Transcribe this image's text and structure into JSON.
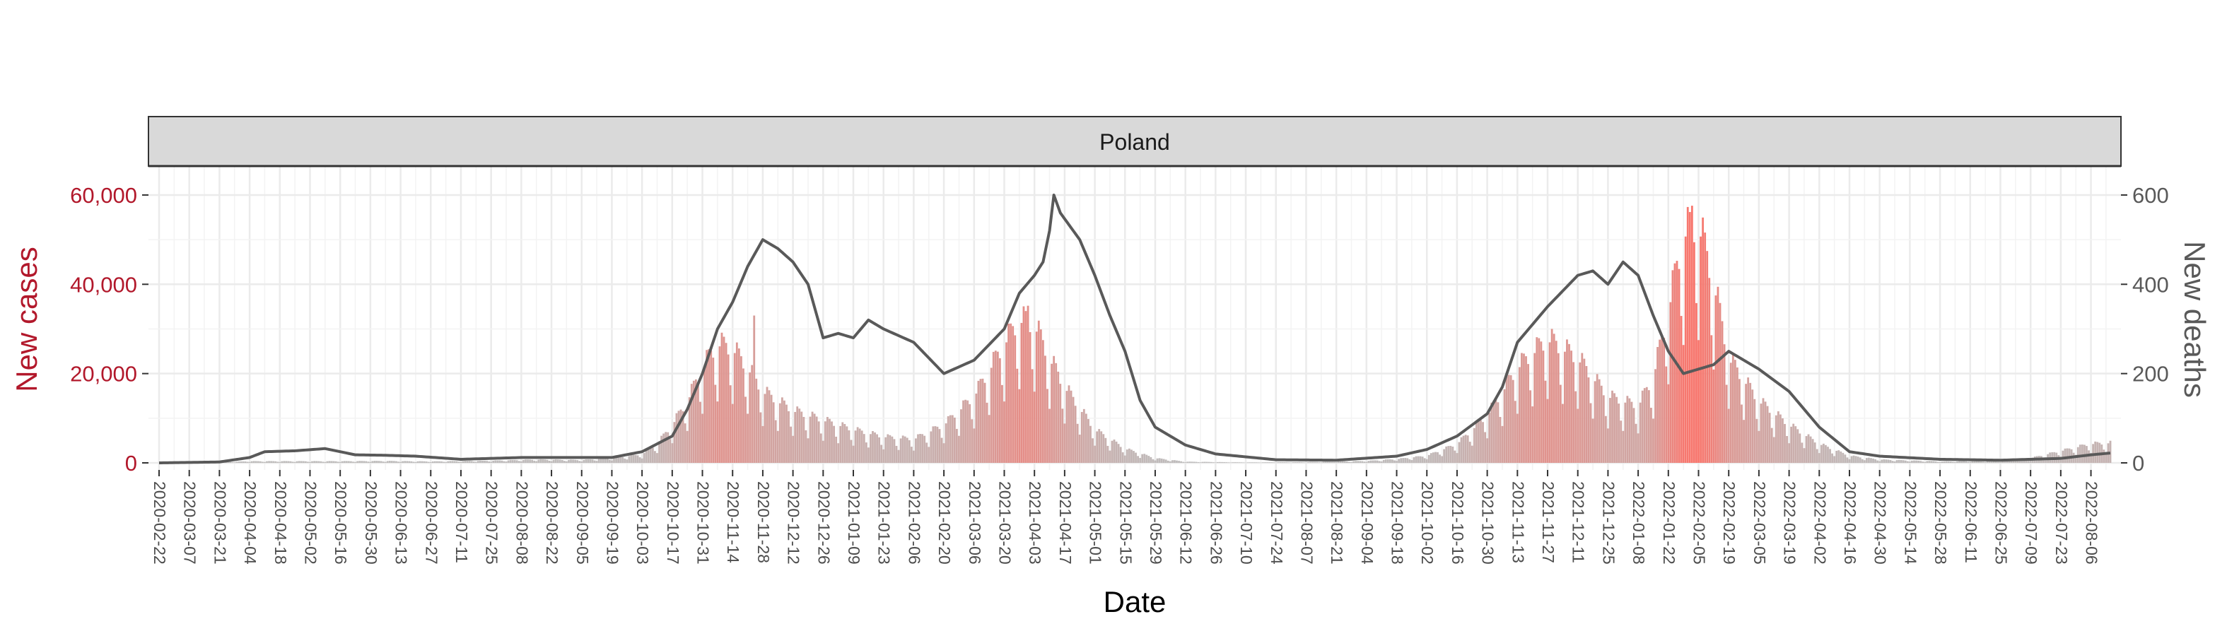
{
  "chart_data": {
    "type": "bar",
    "panel_title": "Poland",
    "xlabel": "Date",
    "ylabel_left": "New cases",
    "ylabel_right": "New deaths",
    "ylim_left": [
      0,
      63000
    ],
    "ylim_right": [
      0,
      630
    ],
    "yticks_left": [
      0,
      20000,
      40000,
      60000
    ],
    "yticks_left_labels": [
      "0",
      "20,000",
      "40,000",
      "60,000"
    ],
    "yticks_right": [
      0,
      200,
      400,
      600
    ],
    "yticks_right_labels": [
      "0",
      "200",
      "400",
      "600"
    ],
    "x_start": "2020-02-22",
    "x_end": "2022-08-15",
    "x_tick_labels": [
      "2020-02-22",
      "2020-03-07",
      "2020-03-21",
      "2020-04-04",
      "2020-04-18",
      "2020-05-02",
      "2020-05-16",
      "2020-05-30",
      "2020-06-13",
      "2020-06-27",
      "2020-07-11",
      "2020-07-25",
      "2020-08-08",
      "2020-08-22",
      "2020-09-05",
      "2020-09-19",
      "2020-10-03",
      "2020-10-17",
      "2020-10-31",
      "2020-11-14",
      "2020-11-28",
      "2020-12-12",
      "2020-12-26",
      "2021-01-09",
      "2021-01-23",
      "2021-02-06",
      "2021-02-20",
      "2021-03-06",
      "2021-03-20",
      "2021-04-03",
      "2021-04-17",
      "2021-05-01",
      "2021-05-15",
      "2021-05-29",
      "2021-06-12",
      "2021-06-26",
      "2021-07-10",
      "2021-07-24",
      "2021-08-07",
      "2021-08-21",
      "2021-09-04",
      "2021-09-18",
      "2021-10-02",
      "2021-10-16",
      "2021-10-30",
      "2021-11-13",
      "2021-11-27",
      "2021-12-11",
      "2021-12-25",
      "2022-01-08",
      "2022-01-22",
      "2022-02-05",
      "2022-02-19",
      "2022-03-05",
      "2022-03-19",
      "2022-04-02",
      "2022-04-16",
      "2022-04-30",
      "2022-05-14",
      "2022-05-28",
      "2022-06-11",
      "2022-06-25",
      "2022-07-09",
      "2022-07-23",
      "2022-08-06"
    ],
    "series": [
      {
        "name": "New cases",
        "kind": "bar",
        "color_low": "#bdbdbd",
        "color_high": "#f8766d",
        "points": [
          [
            "2020-02-22",
            0
          ],
          [
            "2020-03-21",
            100
          ],
          [
            "2020-04-04",
            350
          ],
          [
            "2020-04-18",
            350
          ],
          [
            "2020-05-02",
            350
          ],
          [
            "2020-05-16",
            350
          ],
          [
            "2020-06-06",
            400
          ],
          [
            "2020-06-27",
            300
          ],
          [
            "2020-07-25",
            450
          ],
          [
            "2020-08-15",
            700
          ],
          [
            "2020-09-05",
            600
          ],
          [
            "2020-09-19",
            1000
          ],
          [
            "2020-10-03",
            1800
          ],
          [
            "2020-10-10",
            4000
          ],
          [
            "2020-10-17",
            8000
          ],
          [
            "2020-10-24",
            13000
          ],
          [
            "2020-10-31",
            20000
          ],
          [
            "2020-11-07",
            25000
          ],
          [
            "2020-11-14",
            24000
          ],
          [
            "2020-11-21",
            20000
          ],
          [
            "2020-11-28",
            15000
          ],
          [
            "2020-12-12",
            11000
          ],
          [
            "2020-12-26",
            9000
          ],
          [
            "2021-01-09",
            7000
          ],
          [
            "2021-01-23",
            5500
          ],
          [
            "2021-02-06",
            5000
          ],
          [
            "2021-02-20",
            8000
          ],
          [
            "2021-03-06",
            14000
          ],
          [
            "2021-03-20",
            25000
          ],
          [
            "2021-03-27",
            30000
          ],
          [
            "2021-04-03",
            29000
          ],
          [
            "2021-04-10",
            22000
          ],
          [
            "2021-04-17",
            16000
          ],
          [
            "2021-05-01",
            7000
          ],
          [
            "2021-05-15",
            3000
          ],
          [
            "2021-05-29",
            1000
          ],
          [
            "2021-06-12",
            250
          ],
          [
            "2021-07-10",
            80
          ],
          [
            "2021-08-07",
            150
          ],
          [
            "2021-09-04",
            400
          ],
          [
            "2021-09-18",
            800
          ],
          [
            "2021-10-02",
            1500
          ],
          [
            "2021-10-16",
            4000
          ],
          [
            "2021-10-30",
            10000
          ],
          [
            "2021-11-13",
            20000
          ],
          [
            "2021-11-27",
            26000
          ],
          [
            "2021-12-11",
            22000
          ],
          [
            "2021-12-25",
            14000
          ],
          [
            "2022-01-08",
            12000
          ],
          [
            "2022-01-15",
            18000
          ],
          [
            "2022-01-22",
            32000
          ],
          [
            "2022-01-29",
            48000
          ],
          [
            "2022-02-05",
            50000
          ],
          [
            "2022-02-12",
            38000
          ],
          [
            "2022-02-19",
            22000
          ],
          [
            "2022-03-05",
            13000
          ],
          [
            "2022-03-19",
            8000
          ],
          [
            "2022-04-02",
            4000
          ],
          [
            "2022-04-16",
            1500
          ],
          [
            "2022-04-30",
            700
          ],
          [
            "2022-05-28",
            300
          ],
          [
            "2022-06-25",
            400
          ],
          [
            "2022-07-09",
            1000
          ],
          [
            "2022-07-23",
            2500
          ],
          [
            "2022-08-06",
            4000
          ],
          [
            "2022-08-15",
            4200
          ]
        ],
        "peaks": [
          [
            "2020-11-24",
            33000
          ],
          [
            "2021-03-31",
            35200
          ],
          [
            "2022-02-02",
            57600
          ]
        ]
      },
      {
        "name": "New deaths",
        "kind": "line",
        "axis": "right",
        "color": "#595959",
        "points": [
          [
            "2020-02-22",
            0
          ],
          [
            "2020-03-21",
            2
          ],
          [
            "2020-04-04",
            12
          ],
          [
            "2020-04-11",
            25
          ],
          [
            "2020-04-25",
            27
          ],
          [
            "2020-05-09",
            32
          ],
          [
            "2020-05-23",
            18
          ],
          [
            "2020-06-06",
            17
          ],
          [
            "2020-06-20",
            15
          ],
          [
            "2020-07-11",
            8
          ],
          [
            "2020-08-08",
            12
          ],
          [
            "2020-08-29",
            12
          ],
          [
            "2020-09-19",
            12
          ],
          [
            "2020-10-03",
            25
          ],
          [
            "2020-10-17",
            60
          ],
          [
            "2020-10-24",
            120
          ],
          [
            "2020-10-31",
            200
          ],
          [
            "2020-11-07",
            300
          ],
          [
            "2020-11-14",
            360
          ],
          [
            "2020-11-21",
            440
          ],
          [
            "2020-11-28",
            500
          ],
          [
            "2020-12-05",
            480
          ],
          [
            "2020-12-12",
            450
          ],
          [
            "2020-12-19",
            400
          ],
          [
            "2020-12-26",
            280
          ],
          [
            "2021-01-02",
            290
          ],
          [
            "2021-01-09",
            280
          ],
          [
            "2021-01-16",
            320
          ],
          [
            "2021-01-23",
            300
          ],
          [
            "2021-02-06",
            270
          ],
          [
            "2021-02-20",
            200
          ],
          [
            "2021-03-06",
            230
          ],
          [
            "2021-03-20",
            300
          ],
          [
            "2021-03-27",
            380
          ],
          [
            "2021-04-03",
            420
          ],
          [
            "2021-04-07",
            450
          ],
          [
            "2021-04-10",
            520
          ],
          [
            "2021-04-12",
            600
          ],
          [
            "2021-04-15",
            560
          ],
          [
            "2021-04-24",
            500
          ],
          [
            "2021-05-01",
            420
          ],
          [
            "2021-05-08",
            330
          ],
          [
            "2021-05-15",
            250
          ],
          [
            "2021-05-22",
            140
          ],
          [
            "2021-05-29",
            80
          ],
          [
            "2021-06-05",
            60
          ],
          [
            "2021-06-12",
            40
          ],
          [
            "2021-06-26",
            20
          ],
          [
            "2021-07-24",
            7
          ],
          [
            "2021-08-21",
            6
          ],
          [
            "2021-09-18",
            15
          ],
          [
            "2021-10-02",
            30
          ],
          [
            "2021-10-16",
            60
          ],
          [
            "2021-10-30",
            110
          ],
          [
            "2021-11-06",
            170
          ],
          [
            "2021-11-13",
            270
          ],
          [
            "2021-11-27",
            350
          ],
          [
            "2021-12-11",
            420
          ],
          [
            "2021-12-18",
            430
          ],
          [
            "2021-12-25",
            400
          ],
          [
            "2022-01-01",
            450
          ],
          [
            "2022-01-08",
            420
          ],
          [
            "2022-01-15",
            330
          ],
          [
            "2022-01-22",
            250
          ],
          [
            "2022-01-29",
            200
          ],
          [
            "2022-02-05",
            210
          ],
          [
            "2022-02-12",
            220
          ],
          [
            "2022-02-19",
            250
          ],
          [
            "2022-03-05",
            210
          ],
          [
            "2022-03-19",
            160
          ],
          [
            "2022-04-02",
            80
          ],
          [
            "2022-04-16",
            25
          ],
          [
            "2022-04-30",
            15
          ],
          [
            "2022-05-28",
            8
          ],
          [
            "2022-06-25",
            6
          ],
          [
            "2022-07-23",
            10
          ],
          [
            "2022-08-06",
            18
          ],
          [
            "2022-08-15",
            22
          ]
        ]
      }
    ]
  }
}
